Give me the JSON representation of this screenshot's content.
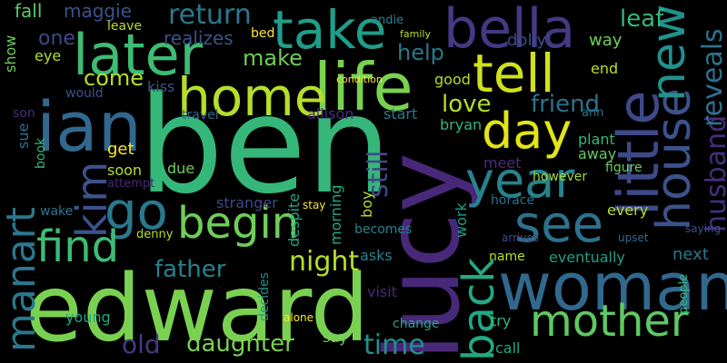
{
  "palette": [
    "#fde725",
    "#b5de2b",
    "#6ece58",
    "#35b779",
    "#1f9e89",
    "#26828e",
    "#31688e",
    "#3e4989",
    "#482878",
    "#440154"
  ],
  "words": [
    {
      "text": "ben",
      "color": "#35b779",
      "rotated": false
    },
    {
      "text": "edward",
      "color": "#7ad151",
      "rotated": false
    },
    {
      "text": "lucy",
      "color": "#482878",
      "rotated": true
    },
    {
      "text": "woman",
      "color": "#31688e",
      "rotated": false
    },
    {
      "text": "ian",
      "color": "#31688e",
      "rotated": false
    },
    {
      "text": "life",
      "color": "#7ad151",
      "rotated": false
    },
    {
      "text": "home",
      "color": "#b5de2b",
      "rotated": false
    },
    {
      "text": "bella",
      "color": "#443983",
      "rotated": false
    },
    {
      "text": "take",
      "color": "#1f9e89",
      "rotated": false
    },
    {
      "text": "later",
      "color": "#3dbc74",
      "rotated": false
    },
    {
      "text": "tell",
      "color": "#d0e11c",
      "rotated": false
    },
    {
      "text": "day",
      "color": "#e2e418",
      "rotated": false
    },
    {
      "text": "year",
      "color": "#26828e",
      "rotated": false
    },
    {
      "text": "little",
      "color": "#3e4989",
      "rotated": true
    },
    {
      "text": "house",
      "color": "#3b528b",
      "rotated": true
    },
    {
      "text": "new",
      "color": "#21918c",
      "rotated": true
    },
    {
      "text": "go",
      "color": "#2a788e",
      "rotated": false
    },
    {
      "text": "begin",
      "color": "#6ece58",
      "rotated": false
    },
    {
      "text": "see",
      "color": "#2c728e",
      "rotated": false
    },
    {
      "text": "back",
      "color": "#22a884",
      "rotated": true
    },
    {
      "text": "find",
      "color": "#3dbc74",
      "rotated": false
    },
    {
      "text": "mother",
      "color": "#5ec962",
      "rotated": false
    },
    {
      "text": "kim",
      "color": "#3b528b",
      "rotated": true
    },
    {
      "text": "manart",
      "color": "#2a788e",
      "rotated": true
    },
    {
      "text": "husband",
      "color": "#472d7b",
      "rotated": true
    },
    {
      "text": "reveals",
      "color": "#2c728e",
      "rotated": true
    },
    {
      "text": "still",
      "color": "#3e4989",
      "rotated": true
    },
    {
      "text": "father",
      "color": "#26828e",
      "rotated": false
    },
    {
      "text": "return",
      "color": "#2a788e",
      "rotated": false
    },
    {
      "text": "night",
      "color": "#b5de2b",
      "rotated": false
    },
    {
      "text": "time",
      "color": "#21918c",
      "rotated": false
    },
    {
      "text": "daughter",
      "color": "#7ad151",
      "rotated": false
    },
    {
      "text": "old",
      "color": "#443983",
      "rotated": false
    },
    {
      "text": "friend",
      "color": "#2c728e",
      "rotated": false
    },
    {
      "text": "love",
      "color": "#b5de2b",
      "rotated": false
    },
    {
      "text": "help",
      "color": "#2a788e",
      "rotated": false
    },
    {
      "text": "leaf",
      "color": "#35b779",
      "rotated": false
    },
    {
      "text": "come",
      "color": "#b5de2b",
      "rotated": false
    },
    {
      "text": "make",
      "color": "#6ece58",
      "rotated": false
    },
    {
      "text": "one",
      "color": "#3e4989",
      "rotated": false
    },
    {
      "text": "fall",
      "color": "#5ec962",
      "rotated": false
    },
    {
      "text": "maggie",
      "color": "#3b528b",
      "rotated": false
    },
    {
      "text": "realizes",
      "color": "#3b528b",
      "rotated": false
    },
    {
      "text": "bed",
      "color": "#fde725",
      "rotated": false
    },
    {
      "text": "andie",
      "color": "#26828e",
      "rotated": false
    },
    {
      "text": "dolly",
      "color": "#3e4989",
      "rotated": false
    },
    {
      "text": "way",
      "color": "#6ece58",
      "rotated": false
    },
    {
      "text": "end",
      "color": "#b5de2b",
      "rotated": false
    },
    {
      "text": "good",
      "color": "#b5de2b",
      "rotated": false
    },
    {
      "text": "kiss",
      "color": "#3b528b",
      "rotated": false
    },
    {
      "text": "get",
      "color": "#fde725",
      "rotated": false
    },
    {
      "text": "soon",
      "color": "#b5de2b",
      "rotated": false
    },
    {
      "text": "allison",
      "color": "#472d7b",
      "rotated": false
    },
    {
      "text": "start",
      "color": "#2a788e",
      "rotated": false
    },
    {
      "text": "bryan",
      "color": "#35b779",
      "rotated": false
    },
    {
      "text": "travel",
      "color": "#31688e",
      "rotated": false
    },
    {
      "text": "meet",
      "color": "#472d7b",
      "rotated": false
    },
    {
      "text": "plant",
      "color": "#35b779",
      "rotated": false
    },
    {
      "text": "away",
      "color": "#5ec962",
      "rotated": false
    },
    {
      "text": "however",
      "color": "#a0da39",
      "rotated": false
    },
    {
      "text": "figure",
      "color": "#6ece58",
      "rotated": false
    },
    {
      "text": "every",
      "color": "#b5de2b",
      "rotated": false
    },
    {
      "text": "next",
      "color": "#2a788e",
      "rotated": false
    },
    {
      "text": "eventually",
      "color": "#1f9e89",
      "rotated": false
    },
    {
      "text": "name",
      "color": "#b5de2b",
      "rotated": false
    },
    {
      "text": "asks",
      "color": "#26828e",
      "rotated": false
    },
    {
      "text": "visit",
      "color": "#482878",
      "rotated": false
    },
    {
      "text": "try",
      "color": "#35b779",
      "rotated": false
    },
    {
      "text": "call",
      "color": "#22a884",
      "rotated": false
    },
    {
      "text": "change",
      "color": "#22a884",
      "rotated": false
    },
    {
      "text": "say",
      "color": "#6ece58",
      "rotated": false
    },
    {
      "text": "young",
      "color": "#22a884",
      "rotated": false
    },
    {
      "text": "due",
      "color": "#6ece58",
      "rotated": false
    },
    {
      "text": "stranger",
      "color": "#3e4989",
      "rotated": false
    },
    {
      "text": "becomes",
      "color": "#26828e",
      "rotated": false
    },
    {
      "text": "show",
      "color": "#6ece58",
      "rotated": true
    },
    {
      "text": "eye",
      "color": "#b5de2b",
      "rotated": false
    },
    {
      "text": "sue",
      "color": "#2c728e",
      "rotated": true
    },
    {
      "text": "book",
      "color": "#35b779",
      "rotated": true
    },
    {
      "text": "son",
      "color": "#472d7b",
      "rotated": false
    },
    {
      "text": "wake",
      "color": "#2a788e",
      "rotated": false
    },
    {
      "text": "boy",
      "color": "#b5de2b",
      "rotated": true
    },
    {
      "text": "work",
      "color": "#1f9e89",
      "rotated": true
    },
    {
      "text": "horace",
      "color": "#2c728e",
      "rotated": false
    },
    {
      "text": "ann",
      "color": "#2c728e",
      "rotated": false
    },
    {
      "text": "denny",
      "color": "#b5de2b",
      "rotated": false
    },
    {
      "text": "alone",
      "color": "#fde725",
      "rotated": false
    },
    {
      "text": "stay",
      "color": "#fde725",
      "rotated": false
    },
    {
      "text": "morning",
      "color": "#22a884",
      "rotated": true
    },
    {
      "text": "despite",
      "color": "#22a884",
      "rotated": true
    },
    {
      "text": "decides",
      "color": "#21918c",
      "rotated": true
    },
    {
      "text": "would",
      "color": "#3b528b",
      "rotated": false
    },
    {
      "text": "leave",
      "color": "#b5de2b",
      "rotated": false
    },
    {
      "text": "condition",
      "color": "#fde725",
      "rotated": false
    },
    {
      "text": "family",
      "color": "#b5de2b",
      "rotated": false
    },
    {
      "text": "attempt",
      "color": "#482878",
      "rotated": false
    },
    {
      "text": "upset",
      "color": "#31688e",
      "rotated": false
    },
    {
      "text": "arrives",
      "color": "#3e4989",
      "rotated": false
    },
    {
      "text": "people",
      "color": "#35b779",
      "rotated": true
    },
    {
      "text": "saying",
      "color": "#3b528b",
      "rotated": false
    }
  ]
}
